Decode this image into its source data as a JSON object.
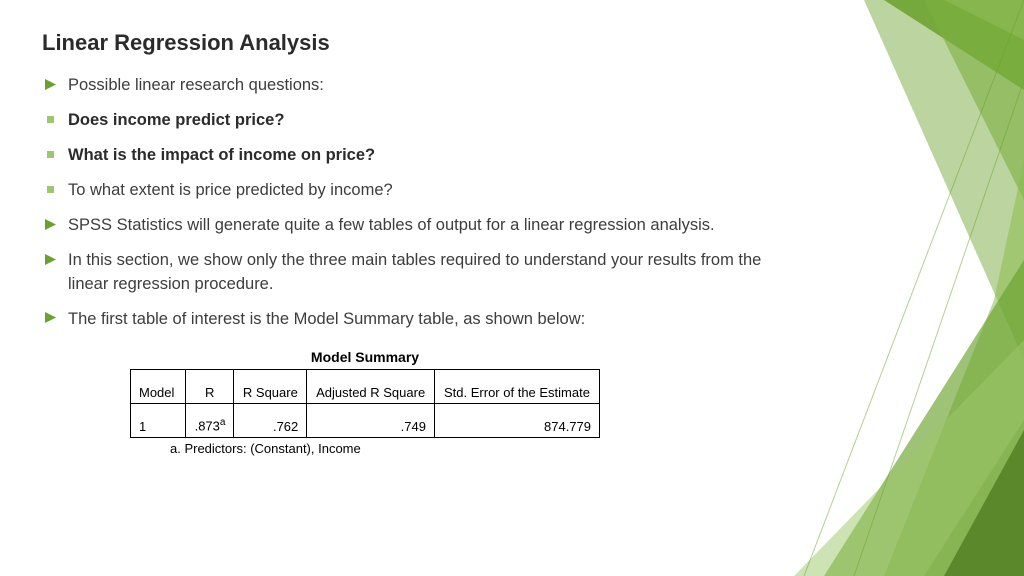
{
  "title": "Linear Regression Analysis",
  "bullets": [
    {
      "marker": "triangle",
      "bold": false,
      "text": "Possible linear research questions:"
    },
    {
      "marker": "square",
      "bold": true,
      "text": "Does income predict price?"
    },
    {
      "marker": "square",
      "bold": true,
      "text": "What is the impact of income on price?"
    },
    {
      "marker": "square",
      "bold": false,
      "text": "To what extent is price predicted by income?"
    },
    {
      "marker": "triangle",
      "bold": false,
      "text": "SPSS Statistics will generate quite a few tables of output for a linear regression analysis."
    },
    {
      "marker": "triangle",
      "bold": false,
      "text": "In this section, we show only the three main tables required to understand your results from the linear regression procedure."
    },
    {
      "marker": "triangle",
      "bold": false,
      "text": "The first table of interest is the Model Summary table, as shown below:"
    }
  ],
  "table": {
    "title": "Model Summary",
    "columns": [
      "Model",
      "R",
      "R Square",
      "Adjusted R Square",
      "Std. Error of the Estimate"
    ],
    "row": {
      "model": "1",
      "r": ".873",
      "r_sup": "a",
      "rsq": ".762",
      "adjrsq": ".749",
      "stderr": "874.779"
    },
    "footnote": "a. Predictors: (Constant), Income"
  },
  "colors": {
    "accent": "#6aa22c",
    "accent_light": "#9cc76a",
    "accent_dark": "#4d7a1f",
    "triangle": "#6aa22c",
    "square": "#9cc76a"
  }
}
